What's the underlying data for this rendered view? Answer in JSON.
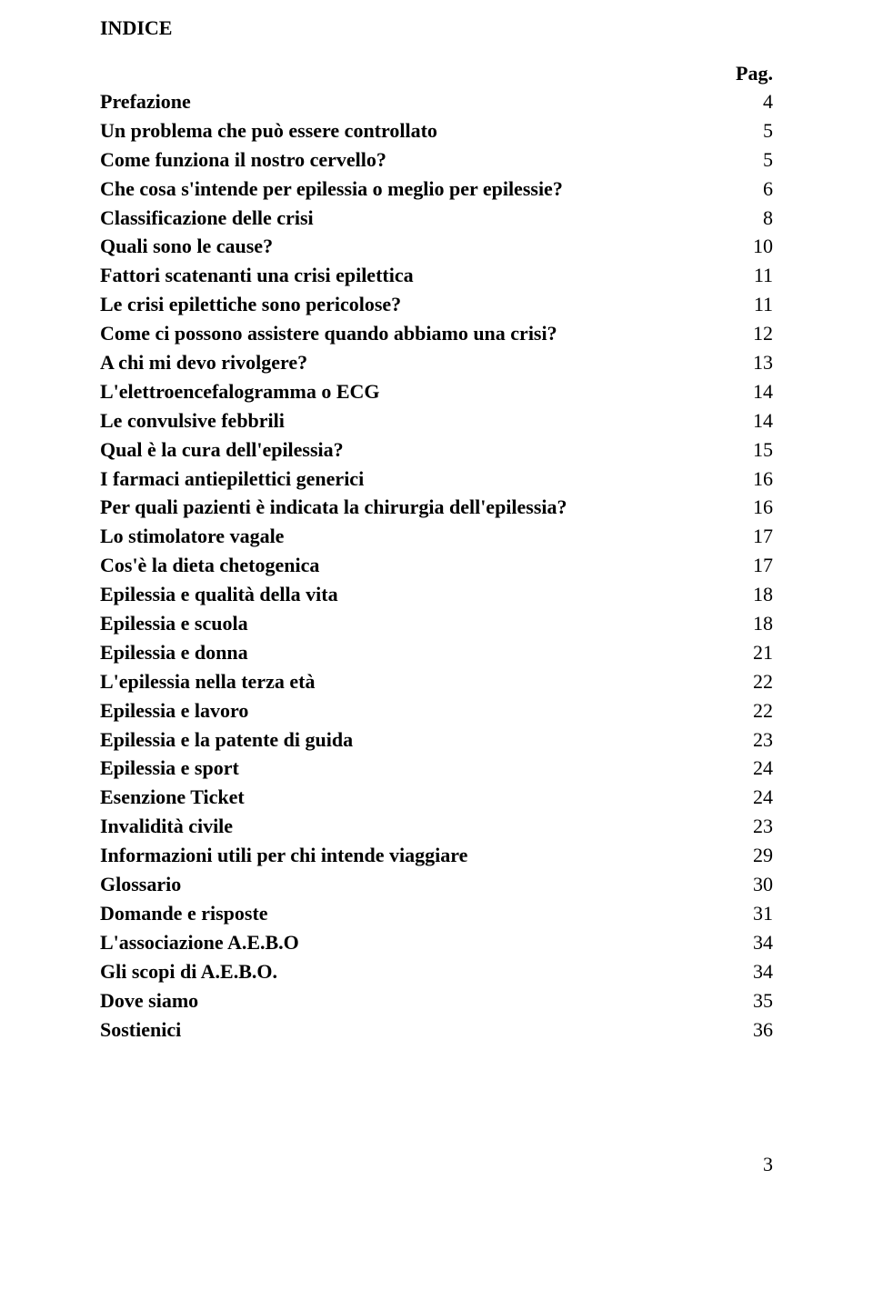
{
  "heading": "INDICE",
  "pagLabel": "Pag.",
  "entries": [
    {
      "label": "Prefazione",
      "page": "4"
    },
    {
      "label": "Un problema che può essere controllato",
      "page": "5"
    },
    {
      "label": "Come funziona il nostro cervello?",
      "page": "5"
    },
    {
      "label": "Che cosa s'intende per epilessia o meglio per epilessie?",
      "page": "6"
    },
    {
      "label": "Classificazione delle crisi",
      "page": "8"
    },
    {
      "label": "Quali sono le cause?",
      "page": "10"
    },
    {
      "label": "Fattori scatenanti una crisi epilettica",
      "page": "11"
    },
    {
      "label": "Le crisi epilettiche sono pericolose?",
      "page": "11"
    },
    {
      "label": "Come ci possono assistere quando abbiamo una crisi?",
      "page": "12"
    },
    {
      "label": "A chi mi devo rivolgere?",
      "page": "13"
    },
    {
      "label": "L'elettroencefalogramma o ECG",
      "page": "14"
    },
    {
      "label": "Le convulsive febbrili",
      "page": "14"
    },
    {
      "label": "Qual è la cura dell'epilessia?",
      "page": "15"
    },
    {
      "label": "I farmaci antiepilettici generici",
      "page": "16"
    },
    {
      "label": "Per quali pazienti è indicata la chirurgia dell'epilessia?",
      "page": "16"
    },
    {
      "label": "Lo stimolatore vagale",
      "page": "17"
    },
    {
      "label": "Cos'è la dieta chetogenica",
      "page": "17"
    },
    {
      "label": "Epilessia e qualità della vita",
      "page": "18"
    },
    {
      "label": "Epilessia e scuola",
      "page": "18"
    },
    {
      "label": "Epilessia e donna",
      "page": "21"
    },
    {
      "label": "L'epilessia nella terza età",
      "page": "22"
    },
    {
      "label": "Epilessia e lavoro",
      "page": "22"
    },
    {
      "label": "Epilessia e la patente di guida",
      "page": "23"
    },
    {
      "label": "Epilessia e sport",
      "page": "24"
    },
    {
      "label": "Esenzione Ticket",
      "page": "24"
    },
    {
      "label": "Invalidità civile",
      "page": "23"
    },
    {
      "label": "Informazioni utili per chi intende viaggiare",
      "page": "29"
    },
    {
      "label": "Glossario",
      "page": "30"
    },
    {
      "label": "Domande e risposte",
      "page": "31"
    },
    {
      "label": "L'associazione A.E.B.O",
      "page": "34"
    },
    {
      "label": "Gli scopi di A.E.B.O.",
      "page": "34"
    },
    {
      "label": "Dove siamo",
      "page": "35"
    },
    {
      "label": "Sostienici",
      "page": "36"
    }
  ],
  "pageNumber": "3"
}
